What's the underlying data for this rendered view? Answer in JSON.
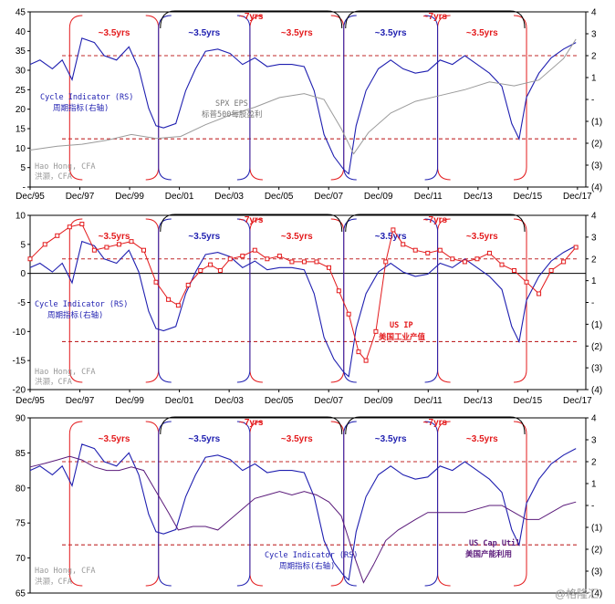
{
  "chart_data": [
    {
      "type": "line",
      "panel": "top",
      "yleft_ticks": [
        "45",
        "40",
        "35",
        "30",
        "25",
        "20",
        "15",
        "10",
        "5",
        "-"
      ],
      "yleft_lim": [
        0,
        45
      ],
      "yright_ticks": [
        "4",
        "3",
        "2",
        "1",
        "-",
        "(1)",
        "(2)",
        "(3)",
        "(4)"
      ],
      "yright_lim": [
        -4,
        4
      ],
      "x_ticks": [
        "Dec/95",
        "Dec/97",
        "Dec/99",
        "Dec/01",
        "Dec/03",
        "Dec/05",
        "Dec/07",
        "Dec/09",
        "Dec/11",
        "Dec/13",
        "Dec/15",
        "Dec/17"
      ],
      "cycle_labels": [
        "~3.5yrs",
        "~3.5yrs",
        "~3.5yrs",
        "~3.5yrs",
        "~3.5yrs",
        "~7yrs",
        "~7yrs"
      ],
      "series": [
        {
          "name": "Cycle Indicator (RS)",
          "name_cn": "周期指标(右轴)",
          "axis": "right",
          "x": [
            1995.9,
            1996.3,
            1996.8,
            1997.2,
            1997.6,
            1998.0,
            1998.5,
            1998.9,
            1999.4,
            1999.9,
            2000.3,
            2000.7,
            2001.0,
            2001.3,
            2001.8,
            2002.2,
            2002.6,
            2003.0,
            2003.5,
            2004.0,
            2004.5,
            2005.0,
            2005.5,
            2006.0,
            2006.5,
            2007.0,
            2007.4,
            2007.8,
            2008.2,
            2008.6,
            2008.8,
            2009.1,
            2009.5,
            2010.0,
            2010.5,
            2011.0,
            2011.5,
            2012.0,
            2012.5,
            2013.0,
            2013.5,
            2014.0,
            2014.5,
            2015.0,
            2015.4,
            2015.7,
            2016.0,
            2016.5,
            2017.0,
            2017.5,
            2018.0
          ],
          "values": [
            1.6,
            1.8,
            1.4,
            1.8,
            0.9,
            2.8,
            2.6,
            2.0,
            1.8,
            2.4,
            1.4,
            -0.4,
            -1.2,
            -1.3,
            -1.1,
            0.4,
            1.4,
            2.2,
            2.3,
            2.1,
            1.6,
            1.9,
            1.5,
            1.6,
            1.6,
            1.5,
            0.4,
            -1.6,
            -2.6,
            -3.2,
            -3.4,
            -1.2,
            0.4,
            1.4,
            1.8,
            1.4,
            1.2,
            1.3,
            1.8,
            1.6,
            2.0,
            1.6,
            1.2,
            0.6,
            -1.1,
            -1.8,
            0.1,
            1.2,
            1.9,
            2.3,
            2.6
          ]
        },
        {
          "name": "SPX EPS",
          "name_cn": "标普500每股盈利",
          "axis": "left",
          "x": [
            1995.9,
            1997.0,
            1998.0,
            1999.0,
            2000.0,
            2001.0,
            2002.0,
            2003.0,
            2004.0,
            2005.0,
            2006.0,
            2007.0,
            2007.8,
            2008.5,
            2009.0,
            2009.6,
            2010.5,
            2011.5,
            2012.5,
            2013.5,
            2014.5,
            2015.5,
            2016.5,
            2017.5,
            2018.0
          ],
          "values": [
            9.5,
            10.5,
            11.0,
            12.0,
            13.5,
            12.5,
            13.0,
            16.0,
            18.5,
            20.5,
            23.0,
            24.0,
            22.5,
            15.0,
            8.5,
            14.0,
            19.0,
            22.0,
            23.5,
            25.0,
            27.0,
            26.0,
            27.5,
            33.0,
            38.0
          ]
        }
      ],
      "reference_lines_right": [
        2.0,
        -1.8
      ]
    },
    {
      "type": "line",
      "panel": "middle",
      "yleft_ticks": [
        "10",
        "5",
        "0",
        "-5",
        "-10",
        "-15",
        "-20"
      ],
      "yleft_lim": [
        -20,
        10
      ],
      "yright_ticks": [
        "4",
        "3",
        "2",
        "1",
        "-",
        "(1)",
        "(2)",
        "(3)",
        "(4)"
      ],
      "yright_lim": [
        -4,
        4
      ],
      "x_ticks": [
        "Dec/95",
        "Dec/97",
        "Dec/99",
        "Dec/01",
        "Dec/03",
        "Dec/05",
        "Dec/07",
        "Dec/09",
        "Dec/11",
        "Dec/13",
        "Dec/15",
        "Dec/17"
      ],
      "cycle_labels": [
        "~3.5yrs",
        "~3.5yrs",
        "~3.5yrs",
        "~3.5yrs",
        "~3.5yrs",
        "~7yrs",
        "~7yrs"
      ],
      "series": [
        {
          "name": "Cycle Indicator (RS)",
          "name_cn": "周期指标(右轴)",
          "axis": "right",
          "x": [
            1995.9,
            1996.3,
            1996.8,
            1997.2,
            1997.6,
            1998.0,
            1998.5,
            1998.9,
            1999.4,
            1999.9,
            2000.3,
            2000.7,
            2001.0,
            2001.3,
            2001.8,
            2002.2,
            2002.6,
            2003.0,
            2003.5,
            2004.0,
            2004.5,
            2005.0,
            2005.5,
            2006.0,
            2006.5,
            2007.0,
            2007.4,
            2007.8,
            2008.2,
            2008.6,
            2008.8,
            2009.1,
            2009.5,
            2010.0,
            2010.5,
            2011.0,
            2011.5,
            2012.0,
            2012.5,
            2013.0,
            2013.5,
            2014.0,
            2014.5,
            2015.0,
            2015.4,
            2015.7,
            2016.0,
            2016.5,
            2017.0,
            2017.5,
            2018.0
          ],
          "values": [
            1.6,
            1.8,
            1.4,
            1.8,
            0.9,
            2.8,
            2.6,
            2.0,
            1.8,
            2.4,
            1.4,
            -0.4,
            -1.2,
            -1.3,
            -1.1,
            0.4,
            1.4,
            2.2,
            2.3,
            2.1,
            1.6,
            1.9,
            1.5,
            1.6,
            1.6,
            1.5,
            0.4,
            -1.6,
            -2.6,
            -3.2,
            -3.4,
            -1.2,
            0.4,
            1.4,
            1.8,
            1.4,
            1.2,
            1.3,
            1.8,
            1.6,
            2.0,
            1.6,
            1.2,
            0.6,
            -1.1,
            -1.8,
            0.1,
            1.2,
            1.9,
            2.3,
            2.6
          ]
        },
        {
          "name": "US IP",
          "name_cn": "美国工业产值",
          "axis": "left",
          "x": [
            1995.9,
            1996.5,
            1997.0,
            1997.5,
            1998.0,
            1998.5,
            1999.0,
            1999.5,
            2000.0,
            2000.5,
            2001.0,
            2001.5,
            2001.9,
            2002.3,
            2002.8,
            2003.2,
            2003.6,
            2004.0,
            2004.5,
            2005.0,
            2005.5,
            2006.0,
            2006.5,
            2007.0,
            2007.5,
            2008.0,
            2008.4,
            2008.8,
            2009.2,
            2009.5,
            2009.9,
            2010.3,
            2010.6,
            2011.0,
            2011.5,
            2012.0,
            2012.5,
            2013.0,
            2013.5,
            2014.0,
            2014.5,
            2015.0,
            2015.5,
            2016.0,
            2016.5,
            2017.0,
            2017.5,
            2018.0
          ],
          "values": [
            2.5,
            5.0,
            6.5,
            8.0,
            8.5,
            4.0,
            4.5,
            5.0,
            5.5,
            4.0,
            -1.5,
            -4.5,
            -5.5,
            -2.0,
            0.5,
            1.5,
            0.5,
            2.5,
            3.0,
            4.0,
            2.5,
            3.0,
            2.0,
            2.0,
            2.0,
            1.0,
            -3.0,
            -7.0,
            -13.5,
            -15.0,
            -10.0,
            2.0,
            7.5,
            5.0,
            4.0,
            3.5,
            4.0,
            2.5,
            2.0,
            2.5,
            3.5,
            1.5,
            0.5,
            -1.5,
            -3.5,
            0.5,
            2.0,
            4.5
          ]
        }
      ],
      "annotation_ip": "US IP",
      "annotation_ip_cn": "美国工业产值",
      "reference_lines_right": [
        2.0,
        -1.8
      ]
    },
    {
      "type": "line",
      "panel": "bottom",
      "yleft_ticks": [
        "90",
        "85",
        "80",
        "75",
        "70",
        "65"
      ],
      "yleft_lim": [
        65,
        90
      ],
      "yright_ticks": [
        "4",
        "3",
        "2",
        "1",
        "-",
        "(1)",
        "(2)",
        "(3)",
        "(4)"
      ],
      "yright_lim": [
        -4,
        4
      ],
      "cycle_labels": [
        "~3.5yrs",
        "~3.5yrs",
        "~3.5yrs",
        "~3.5yrs",
        "~3.5yrs",
        "~7yrs",
        "~7yrs"
      ],
      "series": [
        {
          "name": "Cycle Indicator (RS)",
          "name_cn": "周期指标(右轴)",
          "axis": "right",
          "x": [
            1995.9,
            1996.3,
            1996.8,
            1997.2,
            1997.6,
            1998.0,
            1998.5,
            1998.9,
            1999.4,
            1999.9,
            2000.3,
            2000.7,
            2001.0,
            2001.3,
            2001.8,
            2002.2,
            2002.6,
            2003.0,
            2003.5,
            2004.0,
            2004.5,
            2005.0,
            2005.5,
            2006.0,
            2006.5,
            2007.0,
            2007.4,
            2007.8,
            2008.2,
            2008.6,
            2008.8,
            2009.1,
            2009.5,
            2010.0,
            2010.5,
            2011.0,
            2011.5,
            2012.0,
            2012.5,
            2013.0,
            2013.5,
            2014.0,
            2014.5,
            2015.0,
            2015.4,
            2015.7,
            2016.0,
            2016.5,
            2017.0,
            2017.5,
            2018.0
          ],
          "values": [
            1.6,
            1.8,
            1.4,
            1.8,
            0.9,
            2.8,
            2.6,
            2.0,
            1.8,
            2.4,
            1.4,
            -0.4,
            -1.2,
            -1.3,
            -1.1,
            0.4,
            1.4,
            2.2,
            2.3,
            2.1,
            1.6,
            1.9,
            1.5,
            1.6,
            1.6,
            1.5,
            0.4,
            -1.6,
            -2.6,
            -3.2,
            -3.4,
            -1.2,
            0.4,
            1.4,
            1.8,
            1.4,
            1.2,
            1.3,
            1.8,
            1.6,
            2.0,
            1.6,
            1.2,
            0.6,
            -1.1,
            -1.8,
            0.1,
            1.2,
            1.9,
            2.3,
            2.6
          ]
        },
        {
          "name": "US Cap Util",
          "name_cn": "美国产能利用",
          "axis": "left",
          "x": [
            1995.9,
            1996.5,
            1997.0,
            1997.5,
            1998.0,
            1998.5,
            1999.0,
            1999.5,
            2000.0,
            2000.5,
            2001.0,
            2001.5,
            2001.9,
            2002.5,
            2003.0,
            2003.5,
            2004.0,
            2004.5,
            2005.0,
            2005.5,
            2006.0,
            2006.5,
            2007.0,
            2007.5,
            2008.0,
            2008.5,
            2009.0,
            2009.4,
            2009.8,
            2010.3,
            2010.8,
            2011.5,
            2012.0,
            2012.5,
            2013.0,
            2013.5,
            2014.0,
            2014.5,
            2015.0,
            2015.5,
            2016.0,
            2016.5,
            2017.0,
            2017.5,
            2018.0
          ],
          "values": [
            83.0,
            83.5,
            84.0,
            84.5,
            84.0,
            83.0,
            82.5,
            82.5,
            83.0,
            82.5,
            79.5,
            76.5,
            74.0,
            74.5,
            74.5,
            74.0,
            75.5,
            77.0,
            78.5,
            79.0,
            79.5,
            79.0,
            79.5,
            79.0,
            78.0,
            76.0,
            70.5,
            66.5,
            69.0,
            72.5,
            74.0,
            75.5,
            76.5,
            76.5,
            76.5,
            76.5,
            77.0,
            77.5,
            77.5,
            76.5,
            75.5,
            75.5,
            76.5,
            77.5,
            78.0
          ]
        }
      ],
      "annotation_cu": "US Cap Util",
      "annotation_cu_cn": "美国产能利用",
      "reference_lines_right": [
        2.0,
        -1.8
      ]
    }
  ],
  "annotations": {
    "cycle_indicator": "Cycle Indicator (RS)",
    "cycle_indicator_cn": "周期指标(右轴)",
    "spx_eps": "SPX EPS",
    "spx_eps_cn": "标普500每股盈利",
    "author": "Hao Hong, CFA",
    "author_cn": "洪灏，CFA",
    "watermark": "@格隆汇"
  },
  "colors": {
    "cycle": "#1f1fb0",
    "eps": "#9a9a9a",
    "ip": "#e31a1c",
    "cu": "#5a1a7a",
    "bracket_red": "#e31a1c",
    "bracket_blue": "#1f1fb0",
    "ref_line": "#c0282a"
  }
}
